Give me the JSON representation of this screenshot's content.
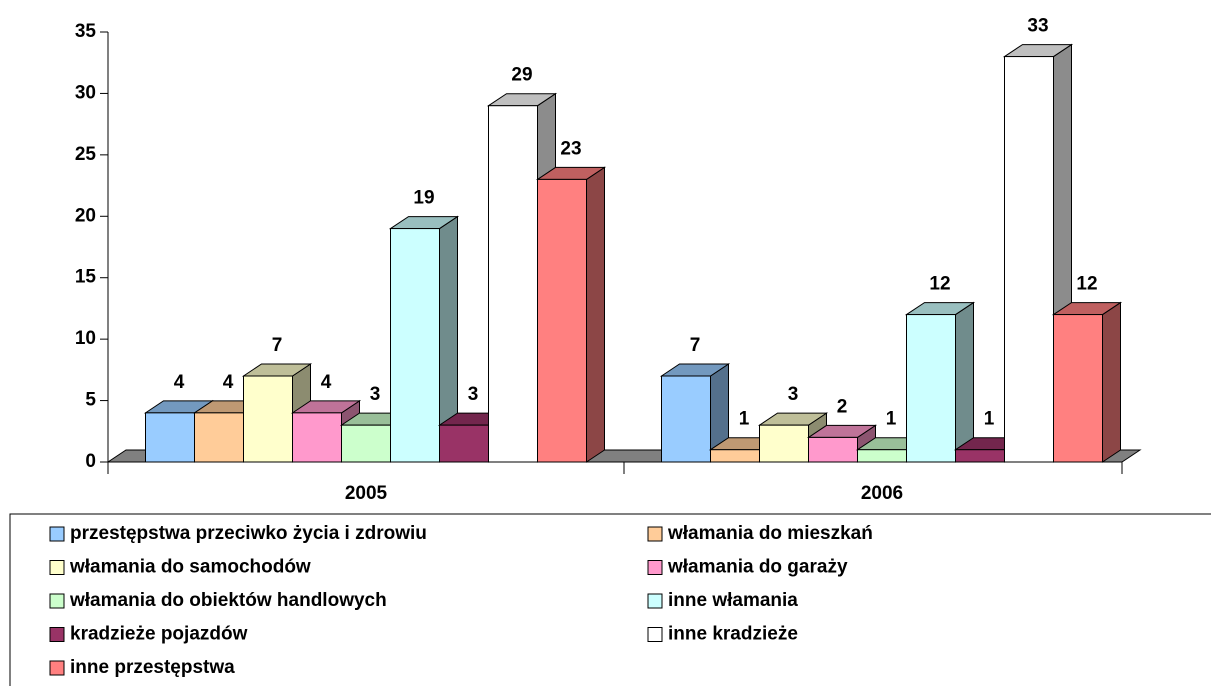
{
  "chart_data": {
    "type": "bar3d",
    "categories": [
      "2005",
      "2006"
    ],
    "series": [
      {
        "name": "przestępstwa przeciwko życia i zdrowiu",
        "color": "#99CCFF",
        "values": [
          4,
          7
        ]
      },
      {
        "name": "włamania do mieszkań",
        "color": "#FFCC99",
        "values": [
          4,
          1
        ]
      },
      {
        "name": "włamania do samochodów",
        "color": "#FFFFCC",
        "values": [
          7,
          3
        ]
      },
      {
        "name": "włamania do garaży",
        "color": "#FF99CC",
        "values": [
          4,
          2
        ]
      },
      {
        "name": "włamania do obiektów handlowych",
        "color": "#CCFFCC",
        "values": [
          3,
          1
        ]
      },
      {
        "name": "inne włamania",
        "color": "#CCFFFF",
        "values": [
          19,
          12
        ]
      },
      {
        "name": "kradzieże pojazdów",
        "color": "#993366",
        "values": [
          3,
          1
        ]
      },
      {
        "name": "inne kradzieże",
        "color": "#FFFFFF",
        "values": [
          29,
          33
        ]
      },
      {
        "name": "inne przestępstwa",
        "color": "#FF8080",
        "values": [
          23,
          12
        ]
      }
    ],
    "ylim": [
      0,
      35
    ],
    "yticks": [
      0,
      5,
      10,
      15,
      20,
      25,
      30,
      35
    ],
    "legend": "bottom"
  }
}
